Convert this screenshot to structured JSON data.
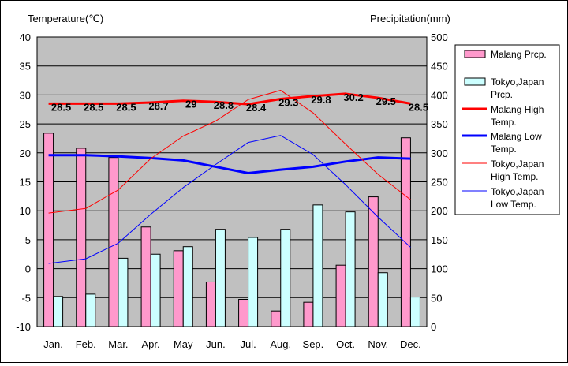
{
  "chart_data": {
    "type": "bar+line",
    "categories": [
      "Jan.",
      "Feb.",
      "Mar.",
      "Apr.",
      "May",
      "Jun.",
      "Jul.",
      "Aug.",
      "Sep.",
      "Oct.",
      "Nov.",
      "Dec."
    ],
    "left_axis": {
      "label": "Temperature(℃)",
      "min": -10,
      "max": 40,
      "ticks": [
        40,
        35,
        30,
        25,
        20,
        15,
        10,
        5,
        0,
        -5,
        -10
      ]
    },
    "right_axis": {
      "label": "Precipitation(mm)",
      "min": 0,
      "max": 500,
      "ticks": [
        500,
        450,
        400,
        350,
        300,
        250,
        200,
        150,
        100,
        50,
        0
      ]
    },
    "bar_series": [
      {
        "name": "Malang Prcp.",
        "color": "#ff99cc",
        "values": [
          334,
          308,
          292,
          172,
          131,
          77,
          47,
          27,
          42,
          106,
          224,
          326
        ]
      },
      {
        "name": "Tokyo,Japan Prcp.",
        "color": "#ccffff",
        "values": [
          52,
          56,
          118,
          125,
          138,
          168,
          154,
          168,
          210,
          198,
          93,
          51
        ]
      }
    ],
    "line_series": [
      {
        "name": "Malang High Temp.",
        "color": "#ff0000",
        "width": 3,
        "values": [
          28.5,
          28.5,
          28.5,
          28.7,
          29,
          28.8,
          28.4,
          29.3,
          29.8,
          30.2,
          29.5,
          28.5
        ]
      },
      {
        "name": "Malang Low Temp.",
        "color": "#0000ff",
        "width": 3,
        "values": [
          19.6,
          19.6,
          19.4,
          19.1,
          18.7,
          17.6,
          16.5,
          17.1,
          17.6,
          18.5,
          19.2,
          19.0
        ]
      },
      {
        "name": "Tokyo,Japan High Temp.",
        "color": "#ff0000",
        "width": 1,
        "values": [
          9.6,
          10.4,
          13.6,
          19.0,
          22.9,
          25.5,
          29.2,
          30.8,
          26.9,
          21.5,
          16.3,
          11.9
        ]
      },
      {
        "name": "Tokyo,Japan Low Temp.",
        "color": "#0000ff",
        "width": 1,
        "values": [
          0.9,
          1.7,
          4.4,
          9.4,
          14.0,
          18.0,
          21.8,
          23.0,
          19.7,
          14.5,
          8.9,
          3.7
        ]
      }
    ],
    "data_labels": [
      "28.5",
      "28.5",
      "28.5",
      "28.7",
      "29",
      "28.8",
      "28.4",
      "29.3",
      "29.8",
      "30.2",
      "29.5",
      "28.5"
    ],
    "legend_labels": {
      "malang_prcp": [
        "Malang Prcp."
      ],
      "tokyo_prcp": [
        "Tokyo,Japan",
        "Prcp."
      ],
      "malang_high": [
        "Malang High",
        "Temp."
      ],
      "malang_low": [
        "Malang Low",
        "Temp."
      ],
      "tokyo_high": [
        "Tokyo,Japan",
        "High Temp."
      ],
      "tokyo_low": [
        "Tokyo,Japan",
        "Low Temp."
      ]
    },
    "plot_background": "#c0c0c0",
    "grid": true,
    "legend_position": "right"
  }
}
